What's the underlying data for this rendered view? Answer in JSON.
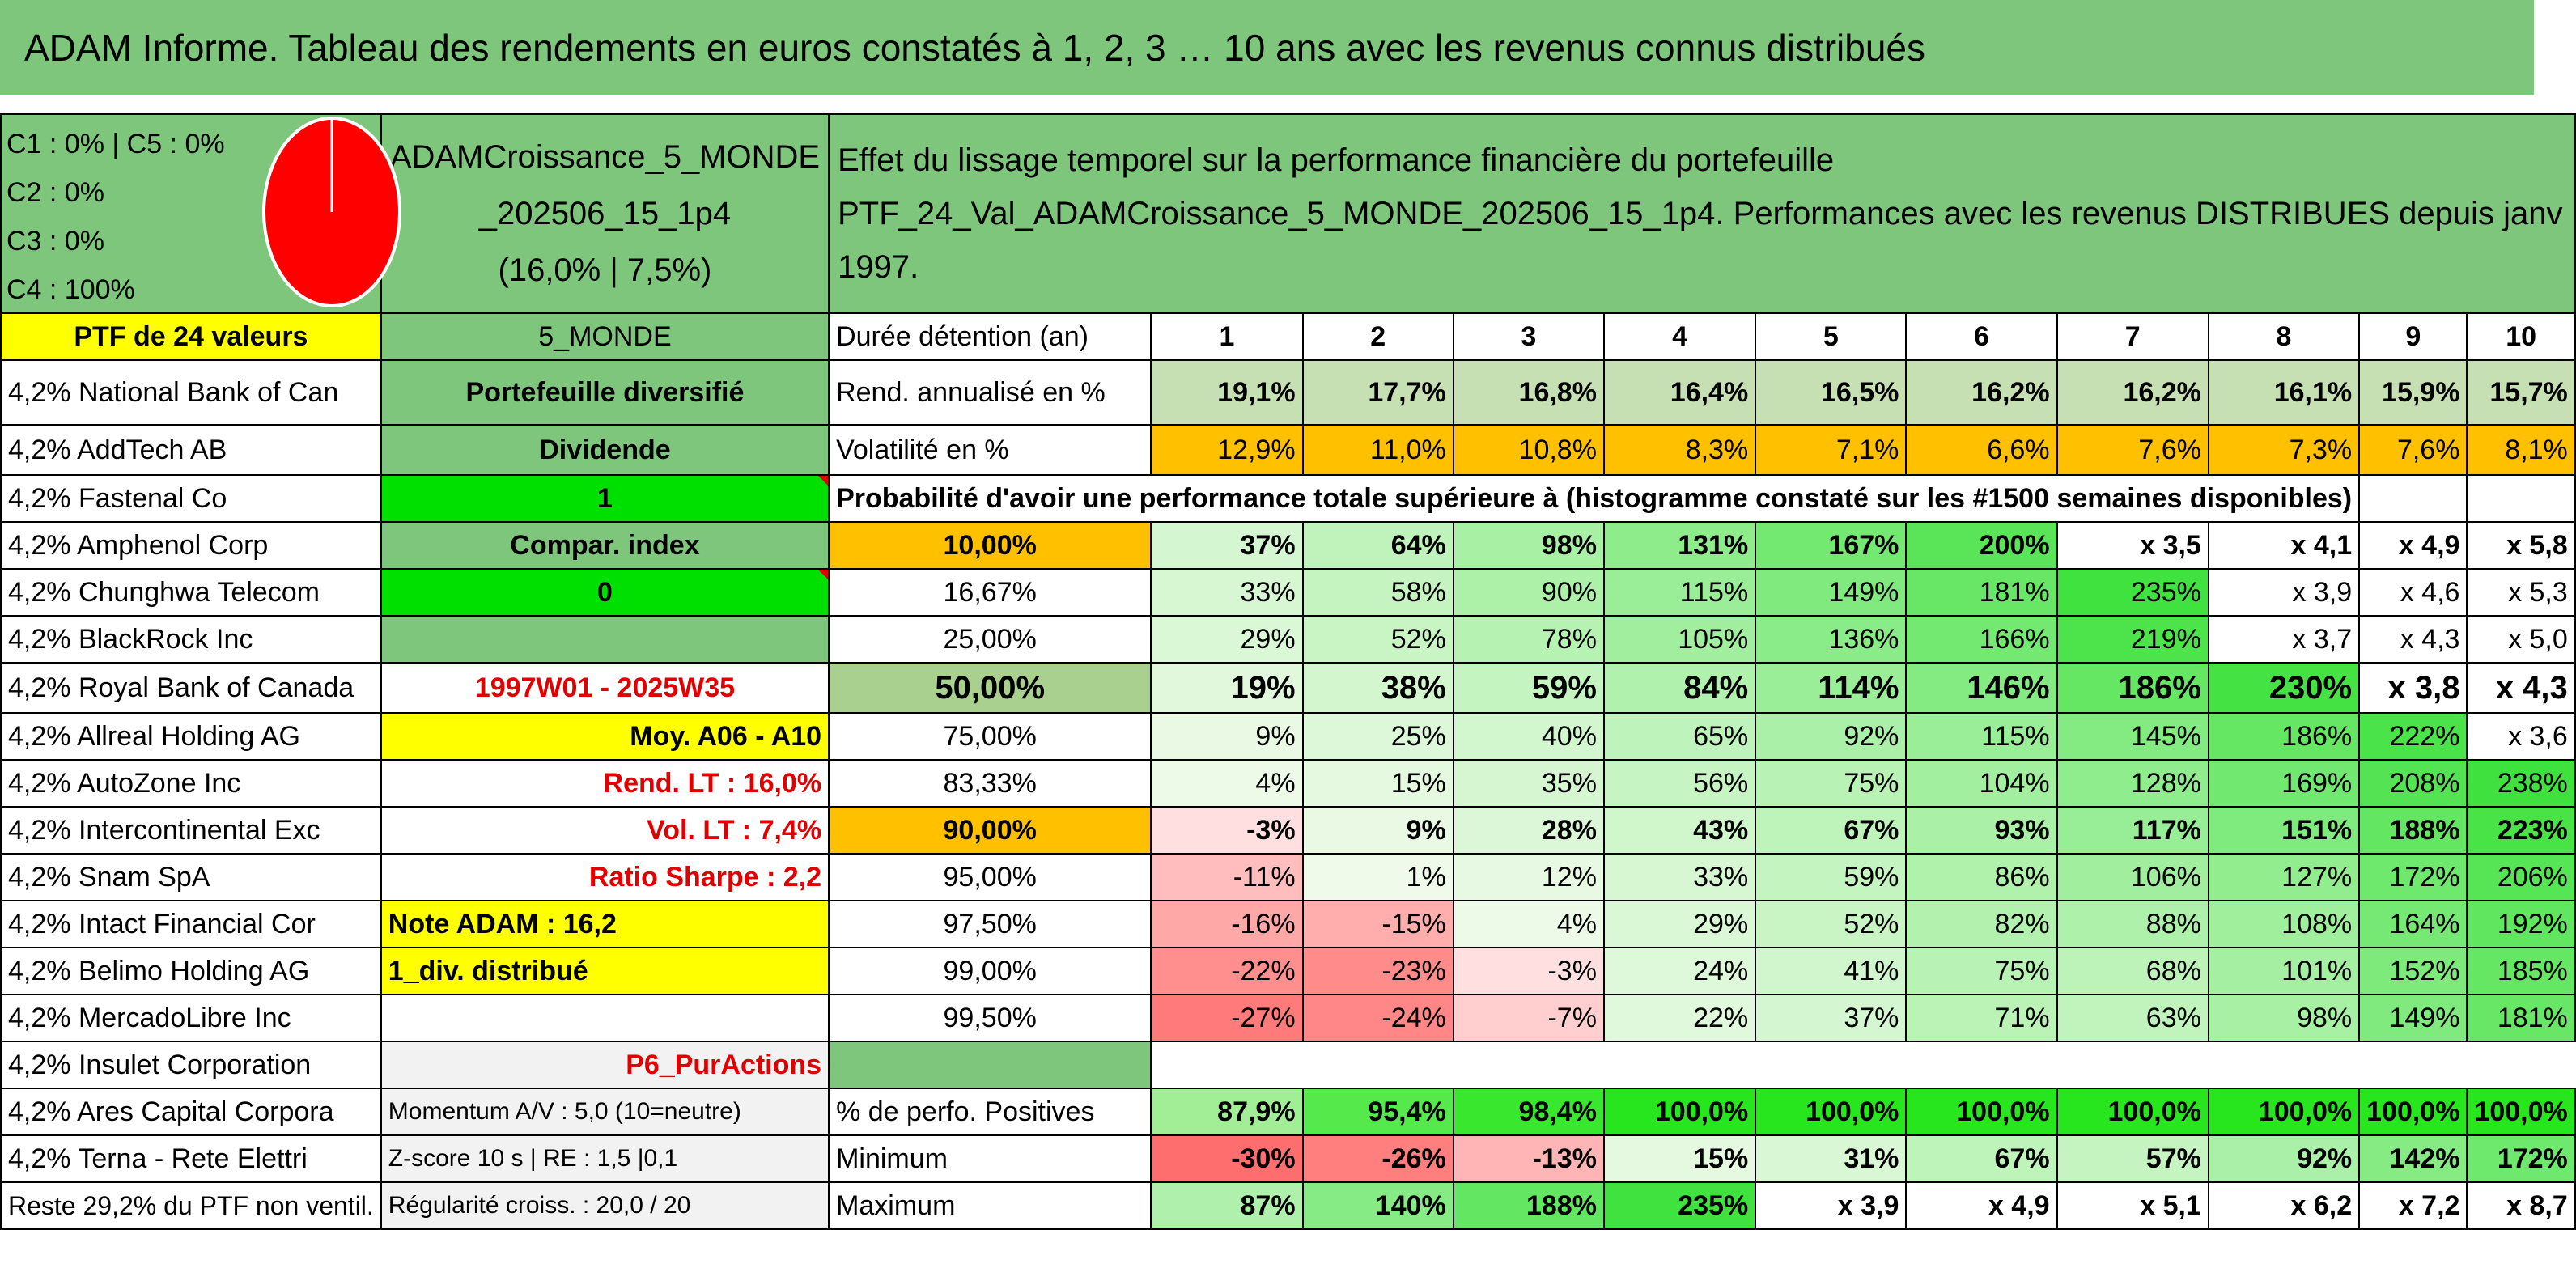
{
  "title": "ADAM Informe. Tableau des rendements en euros constatés à 1, 2, 3 … 10 ans avec les revenus connus distribués",
  "allocation": {
    "lines": [
      "C1 : 0% | C5 : 0%",
      "C2 : 0%",
      "C3 : 0%",
      "C4 : 100%"
    ],
    "pie_color": "#ff0000",
    "pie_values": {
      "C1": 0,
      "C2": 0,
      "C3": 0,
      "C4": 100,
      "C5": 0
    }
  },
  "fund": {
    "name_line1": "ADAMCroissance_5_MONDE",
    "name_line2": "_202506_15_1p4",
    "name_line3": "(16,0% | 7,5%)",
    "desc_line1": "Effet du lissage temporel sur la performance financière du portefeuille",
    "desc_line2": "PTF_24_Val_ADAMCroissance_5_MONDE_202506_15_1p4. Performances avec les revenus DISTRIBUES depuis janv 1997."
  },
  "ptf_label": "PTF de 24 valeurs",
  "region": "5_MONDE",
  "holdings": [
    "4,2% National Bank of Can",
    "4,2% AddTech AB",
    "4,2% Fastenal Co",
    "4,2% Amphenol Corp",
    "4,2% Chunghwa Telecom",
    "4,2% BlackRock Inc",
    "4,2% Royal Bank of Canada",
    "4,2% Allreal Holding AG",
    "4,2% AutoZone Inc",
    "4,2% Intercontinental Exc",
    "4,2% Snam SpA",
    "4,2% Intact Financial Cor",
    "4,2% Belimo Holding AG",
    "4,2% MercadoLibre Inc",
    "4,2% Insulet Corporation",
    "4,2% Ares Capital Corpora",
    "4,2% Terna - Rete Elettri",
    "Reste 29,2% du PTF non ventil."
  ],
  "side_info": {
    "portefeuille": "Portefeuille diversifié",
    "dividende": "Dividende",
    "dividende_val": "1",
    "compar": "Compar. index",
    "compar_val": "0",
    "period": "1997W01 - 2025W35",
    "moy": "Moy. A06 - A10",
    "rend_lt": "Rend. LT : 16,0%",
    "vol_lt": "Vol. LT : 7,4%",
    "sharpe": "Ratio Sharpe : 2,2",
    "note": "Note ADAM : 16,2",
    "div_dist": "1_div. distribué",
    "pur": "P6_PurActions",
    "momentum": "Momentum A/V : 5,0 (10=neutre)",
    "zscore": "Z-score 10 s | RE : 1,5 |0,1",
    "regularite": "Régularité croiss. : 20,0 / 20"
  },
  "years_label": "Durée détention (an)",
  "years": [
    "1",
    "2",
    "3",
    "4",
    "5",
    "6",
    "7",
    "8",
    "9",
    "10"
  ],
  "rend_label": "Rend. annualisé en %",
  "rend": [
    "19,1%",
    "17,7%",
    "16,8%",
    "16,4%",
    "16,5%",
    "16,2%",
    "16,2%",
    "16,1%",
    "15,9%",
    "15,7%"
  ],
  "vol_label": "Volatilité en %",
  "vol": [
    "12,9%",
    "11,0%",
    "10,8%",
    "8,3%",
    "7,1%",
    "6,6%",
    "7,6%",
    "7,3%",
    "7,6%",
    "8,1%"
  ],
  "prob_title": "Probabilité d'avoir une performance totale supérieure à (histogramme constaté sur les #1500 semaines disponibles)",
  "prob_rows": [
    {
      "p": "10,00%",
      "v": [
        "37%",
        "64%",
        "98%",
        "131%",
        "167%",
        "200%",
        "x 3,5",
        "x 4,1",
        "x 4,9",
        "x 5,8"
      ]
    },
    {
      "p": "16,67%",
      "v": [
        "33%",
        "58%",
        "90%",
        "115%",
        "149%",
        "181%",
        "235%",
        "x 3,9",
        "x 4,6",
        "x 5,3"
      ]
    },
    {
      "p": "25,00%",
      "v": [
        "29%",
        "52%",
        "78%",
        "105%",
        "136%",
        "166%",
        "219%",
        "x 3,7",
        "x 4,3",
        "x 5,0"
      ]
    },
    {
      "p": "50,00%",
      "v": [
        "19%",
        "38%",
        "59%",
        "84%",
        "114%",
        "146%",
        "186%",
        "230%",
        "x 3,8",
        "x 4,3"
      ]
    },
    {
      "p": "75,00%",
      "v": [
        "9%",
        "25%",
        "40%",
        "65%",
        "92%",
        "115%",
        "145%",
        "186%",
        "222%",
        "x 3,6"
      ]
    },
    {
      "p": "83,33%",
      "v": [
        "4%",
        "15%",
        "35%",
        "56%",
        "75%",
        "104%",
        "128%",
        "169%",
        "208%",
        "238%"
      ]
    },
    {
      "p": "90,00%",
      "v": [
        "-3%",
        "9%",
        "28%",
        "43%",
        "67%",
        "93%",
        "117%",
        "151%",
        "188%",
        "223%"
      ]
    },
    {
      "p": "95,00%",
      "v": [
        "-11%",
        "1%",
        "12%",
        "33%",
        "59%",
        "86%",
        "106%",
        "127%",
        "172%",
        "206%"
      ]
    },
    {
      "p": "97,50%",
      "v": [
        "-16%",
        "-15%",
        "4%",
        "29%",
        "52%",
        "82%",
        "88%",
        "108%",
        "164%",
        "192%"
      ]
    },
    {
      "p": "99,00%",
      "v": [
        "-22%",
        "-23%",
        "-3%",
        "24%",
        "41%",
        "75%",
        "68%",
        "101%",
        "152%",
        "185%"
      ]
    },
    {
      "p": "99,50%",
      "v": [
        "-27%",
        "-24%",
        "-7%",
        "22%",
        "37%",
        "71%",
        "63%",
        "98%",
        "149%",
        "181%"
      ]
    }
  ],
  "pos_label": "% de perfo. Positives",
  "pos": [
    "87,9%",
    "95,4%",
    "98,4%",
    "100,0%",
    "100,0%",
    "100,0%",
    "100,0%",
    "100,0%",
    "100,0%",
    "100,0%"
  ],
  "min_label": "Minimum",
  "min": [
    "-30%",
    "-26%",
    "-13%",
    "15%",
    "31%",
    "67%",
    "57%",
    "92%",
    "142%",
    "172%"
  ],
  "max_label": "Maximum",
  "max": [
    "87%",
    "140%",
    "188%",
    "235%",
    "x 3,9",
    "x 4,9",
    "x 5,1",
    "x 6,2",
    "x 7,2",
    "x 8,7"
  ],
  "colors": {
    "green_header": "#7dc67c",
    "yellow": "#ffff00",
    "bright_green": "#00e000",
    "orange": "#ffc000",
    "red_text": "#e00000"
  }
}
